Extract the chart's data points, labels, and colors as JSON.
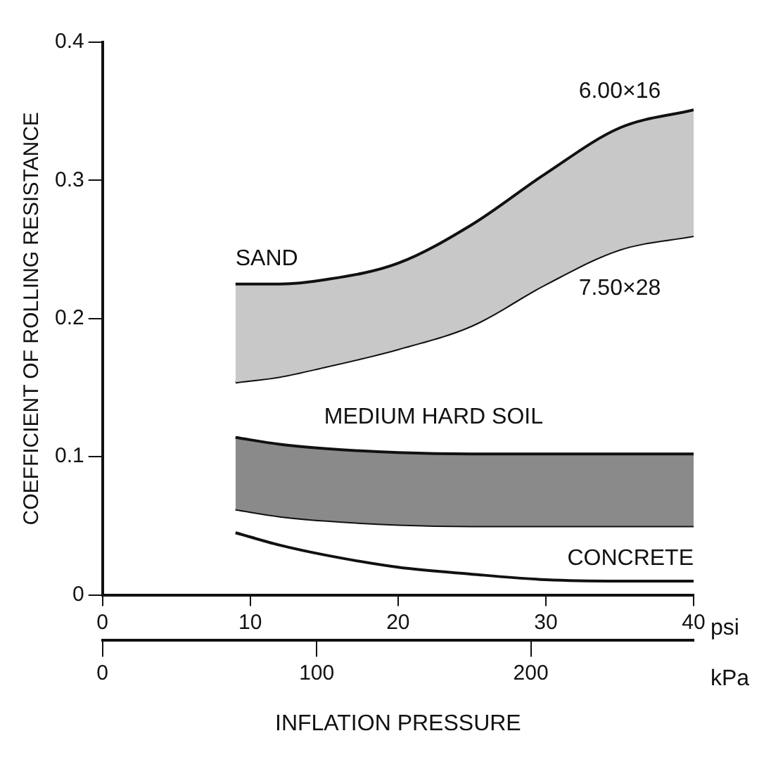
{
  "chart_data": {
    "type": "line",
    "ylabel": "COEFFICIENT OF ROLLING RESISTANCE",
    "xlabel": "INFLATION PRESSURE",
    "x2label": "kPa",
    "x": [
      9,
      12,
      15,
      20,
      25,
      30,
      35,
      40
    ],
    "xlim": [
      0,
      40
    ],
    "xticks": [
      0,
      10,
      20,
      30,
      40
    ],
    "x2lim": [
      0,
      276
    ],
    "x2ticks": [
      0,
      100,
      200
    ],
    "ylim": [
      0,
      0.4
    ],
    "yticks": [
      0,
      0.1,
      0.2,
      0.3,
      0.4
    ],
    "grid": false,
    "legend": false,
    "marker": "none",
    "line_style": "solid",
    "series": [
      {
        "name": "6.00×16",
        "type": "area",
        "color": "#c8c8c8",
        "values": [
          0.225,
          0.225,
          0.228,
          0.24,
          0.268,
          0.305,
          0.338,
          0.351
        ]
      },
      {
        "name": "7.50×28",
        "color": "#111111",
        "values": [
          0.154,
          0.158,
          0.165,
          0.178,
          0.195,
          0.225,
          0.25,
          0.26
        ]
      },
      {
        "type": "area",
        "color": "#8a8a8a",
        "values": [
          0.114,
          0.109,
          0.106,
          0.103,
          0.102,
          0.102,
          0.102,
          0.102
        ]
      },
      {
        "color": "#111111",
        "values": [
          0.062,
          0.057,
          0.054,
          0.051,
          0.05,
          0.05,
          0.05,
          0.05
        ]
      },
      {
        "color": "#111111",
        "values": [
          0.045,
          0.036,
          0.029,
          0.02,
          0.015,
          0.011,
          0.01,
          0.01
        ]
      }
    ],
    "annotations": [
      "SAND",
      "MEDIUM HARD SOIL",
      "CONCRETE",
      "psi"
    ]
  }
}
